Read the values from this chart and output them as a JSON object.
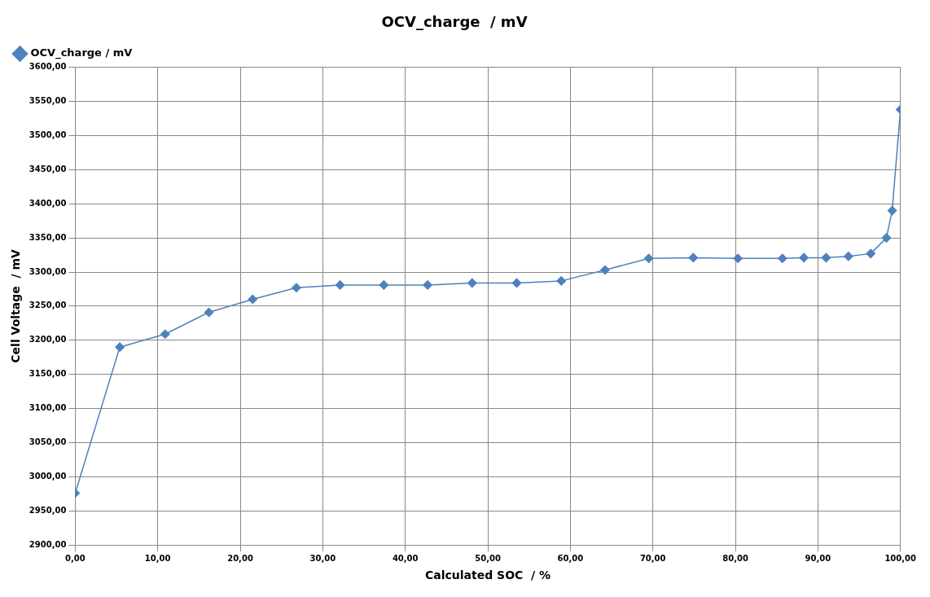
{
  "chart_data": {
    "type": "line",
    "title": "OCV_charge  / mV",
    "xlabel": "Calculated SOC  / %",
    "ylabel": "Cell Voltage  / mV",
    "x": [
      0,
      5.4,
      10.9,
      16.2,
      21.5,
      26.8,
      32.1,
      37.4,
      42.7,
      48.1,
      53.5,
      58.9,
      64.2,
      69.5,
      74.9,
      80.3,
      85.7,
      88.3,
      91.0,
      93.7,
      96.4,
      98.3,
      99.0,
      100
    ],
    "series": [
      {
        "name": "OCV_charge / mV",
        "color": "#4f81bd",
        "values": [
          2976,
          3190,
          3209,
          3241,
          3260,
          3277,
          3281,
          3281,
          3281,
          3284,
          3284,
          3287,
          3303,
          3320,
          3321,
          3320,
          3320,
          3321,
          3321,
          3323,
          3327,
          3350,
          3390,
          3538
        ]
      }
    ],
    "xlim": [
      0,
      100
    ],
    "ylim": [
      2900,
      3600
    ],
    "xticks": [
      {
        "value": 0,
        "label": "0,00"
      },
      {
        "value": 10,
        "label": "10,00"
      },
      {
        "value": 20,
        "label": "20,00"
      },
      {
        "value": 30,
        "label": "30,00"
      },
      {
        "value": 40,
        "label": "40,00"
      },
      {
        "value": 50,
        "label": "50,00"
      },
      {
        "value": 60,
        "label": "60,00"
      },
      {
        "value": 70,
        "label": "70,00"
      },
      {
        "value": 80,
        "label": "80,00"
      },
      {
        "value": 90,
        "label": "90,00"
      },
      {
        "value": 100,
        "label": "100,00"
      }
    ],
    "yticks": [
      {
        "value": 2900,
        "label": "2900,00"
      },
      {
        "value": 2950,
        "label": "2950,00"
      },
      {
        "value": 3000,
        "label": "3000,00"
      },
      {
        "value": 3050,
        "label": "3050,00"
      },
      {
        "value": 3100,
        "label": "3100,00"
      },
      {
        "value": 3150,
        "label": "3150,00"
      },
      {
        "value": 3200,
        "label": "3200,00"
      },
      {
        "value": 3250,
        "label": "3250,00"
      },
      {
        "value": 3300,
        "label": "3300,00"
      },
      {
        "value": 3350,
        "label": "3350,00"
      },
      {
        "value": 3400,
        "label": "3400,00"
      },
      {
        "value": 3450,
        "label": "3450,00"
      },
      {
        "value": 3500,
        "label": "3500,00"
      },
      {
        "value": 3550,
        "label": "3550,00"
      },
      {
        "value": 3600,
        "label": "3600,00"
      }
    ],
    "grid": true,
    "legend": "top left",
    "marker": "diamond",
    "line_style": "solid"
  }
}
